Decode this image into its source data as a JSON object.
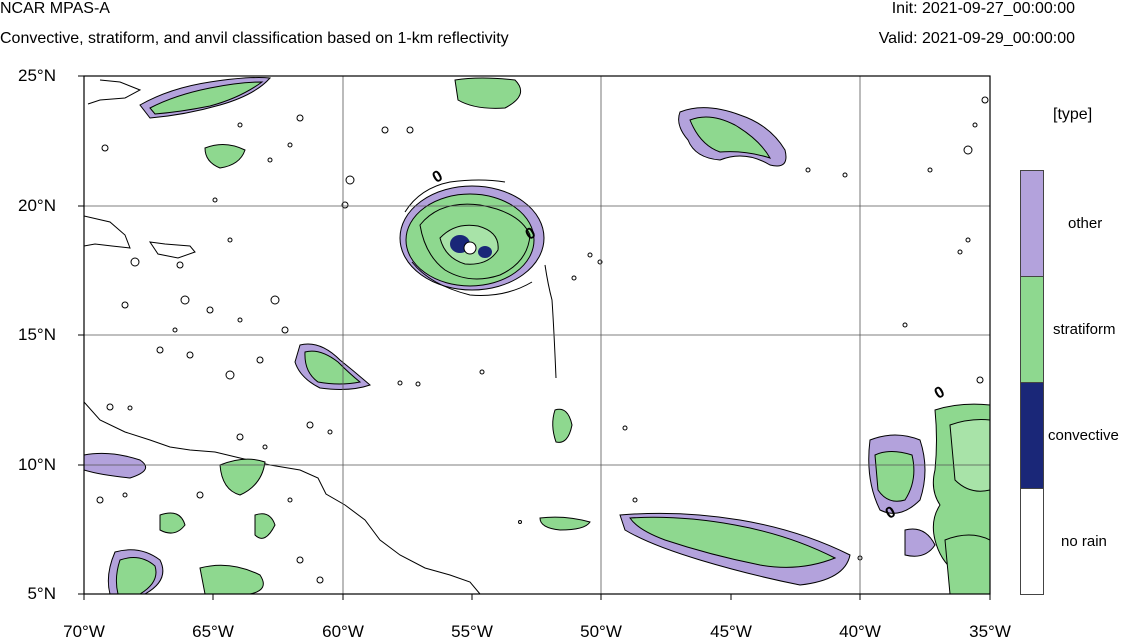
{
  "header": {
    "model": "NCAR MPAS-A",
    "subtitle": "Convective, stratiform, and anvil classification based on 1-km reflectivity",
    "init": "Init: 2021-09-27_00:00:00",
    "valid": "Valid: 2021-09-29_00:00:00"
  },
  "map": {
    "extent": {
      "lon": [
        -70,
        -35
      ],
      "lat": [
        5,
        25
      ]
    },
    "lat_labels": [
      "25°N",
      "20°N",
      "15°N",
      "10°N",
      "5°N"
    ],
    "lon_labels": [
      "70°W",
      "65°W",
      "60°W",
      "55°W",
      "50°W",
      "45°W",
      "40°W",
      "35°W"
    ],
    "contour_zero_label": "0"
  },
  "legend": {
    "title": "[type]",
    "items": [
      {
        "label": "other",
        "color": "#b3a2dc"
      },
      {
        "label": "stratiform",
        "color": "#8ed88f"
      },
      {
        "label": "convective",
        "color": "#1a2778"
      },
      {
        "label": "no rain",
        "color": "#ffffff"
      }
    ]
  }
}
